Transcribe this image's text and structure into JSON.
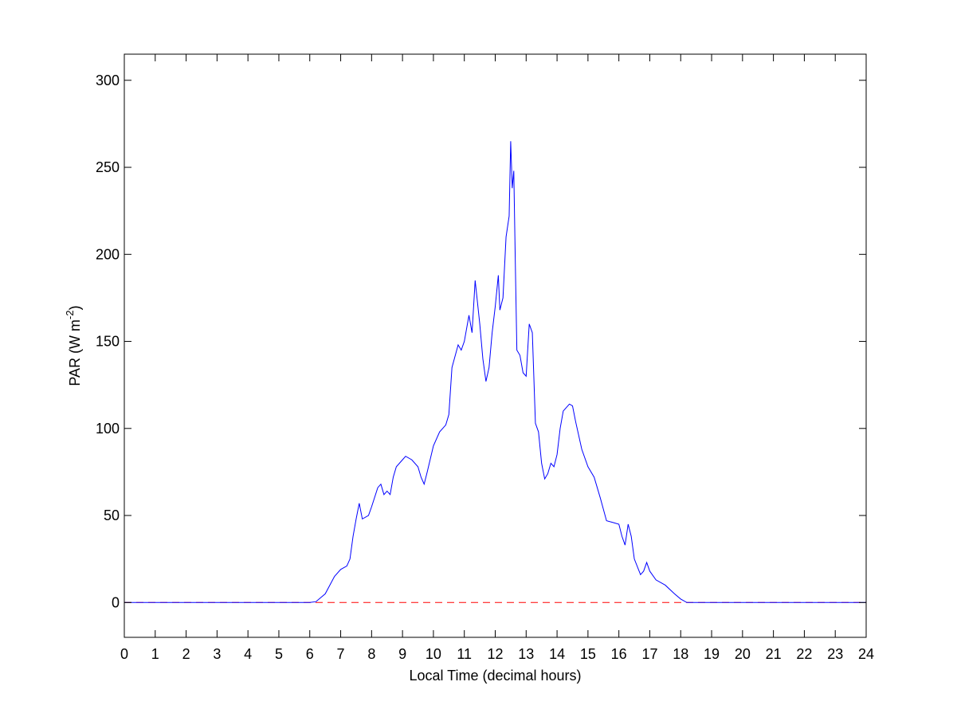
{
  "chart_data": {
    "type": "line",
    "xlabel": "Local Time (decimal hours)",
    "ylabel": {
      "text": "PAR (W m",
      "superscript": "-2",
      "suffix": ")"
    },
    "x": [
      0,
      6,
      6.2,
      6.5,
      6.8,
      7,
      7.2,
      7.3,
      7.4,
      7.5,
      7.6,
      7.7,
      7.9,
      8,
      8.2,
      8.3,
      8.4,
      8.5,
      8.6,
      8.7,
      8.8,
      9,
      9.1,
      9.3,
      9.5,
      9.6,
      9.7,
      9.8,
      10,
      10.2,
      10.4,
      10.5,
      10.6,
      10.8,
      10.9,
      11,
      11.15,
      11.25,
      11.35,
      11.5,
      11.6,
      11.7,
      11.8,
      11.9,
      12,
      12.1,
      12.15,
      12.25,
      12.35,
      12.45,
      12.5,
      12.55,
      12.6,
      12.65,
      12.7,
      12.8,
      12.9,
      13,
      13.1,
      13.2,
      13.3,
      13.4,
      13.5,
      13.6,
      13.7,
      13.8,
      13.9,
      14,
      14.1,
      14.2,
      14.4,
      14.5,
      14.6,
      14.8,
      15,
      15.2,
      15.4,
      15.6,
      15.8,
      16,
      16.1,
      16.2,
      16.3,
      16.4,
      16.5,
      16.7,
      16.8,
      16.9,
      17,
      17.2,
      17.5,
      17.8,
      18,
      18.2,
      24
    ],
    "values": [
      0,
      0,
      0.5,
      5,
      15,
      19,
      21,
      25,
      38,
      48,
      57,
      48,
      50,
      55,
      66,
      68,
      62,
      64,
      62,
      72,
      78,
      82,
      84,
      82,
      78,
      72,
      68,
      75,
      90,
      98,
      102,
      108,
      135,
      148,
      145,
      150,
      165,
      155,
      185,
      160,
      140,
      127,
      135,
      155,
      170,
      188,
      168,
      175,
      210,
      222,
      265,
      238,
      248,
      195,
      145,
      142,
      132,
      130,
      160,
      155,
      103,
      98,
      80,
      71,
      74,
      80,
      78,
      85,
      100,
      110,
      114,
      113,
      104,
      88,
      78,
      72,
      60,
      47,
      46,
      45,
      38,
      33,
      45,
      38,
      25,
      16,
      18,
      23,
      18,
      13,
      10,
      5,
      2,
      0,
      0
    ],
    "color": "#0000ff",
    "reference_line": {
      "value": 0,
      "color": "#ff0000",
      "style": "dashed"
    },
    "xlim": [
      0,
      24
    ],
    "xticks": [
      0,
      1,
      2,
      3,
      4,
      5,
      6,
      7,
      8,
      9,
      10,
      11,
      12,
      13,
      14,
      15,
      16,
      17,
      18,
      19,
      20,
      21,
      22,
      23,
      24
    ],
    "ylim": [
      -20,
      315
    ],
    "yticks": [
      0,
      50,
      100,
      150,
      200,
      250,
      300
    ],
    "grid": false
  }
}
